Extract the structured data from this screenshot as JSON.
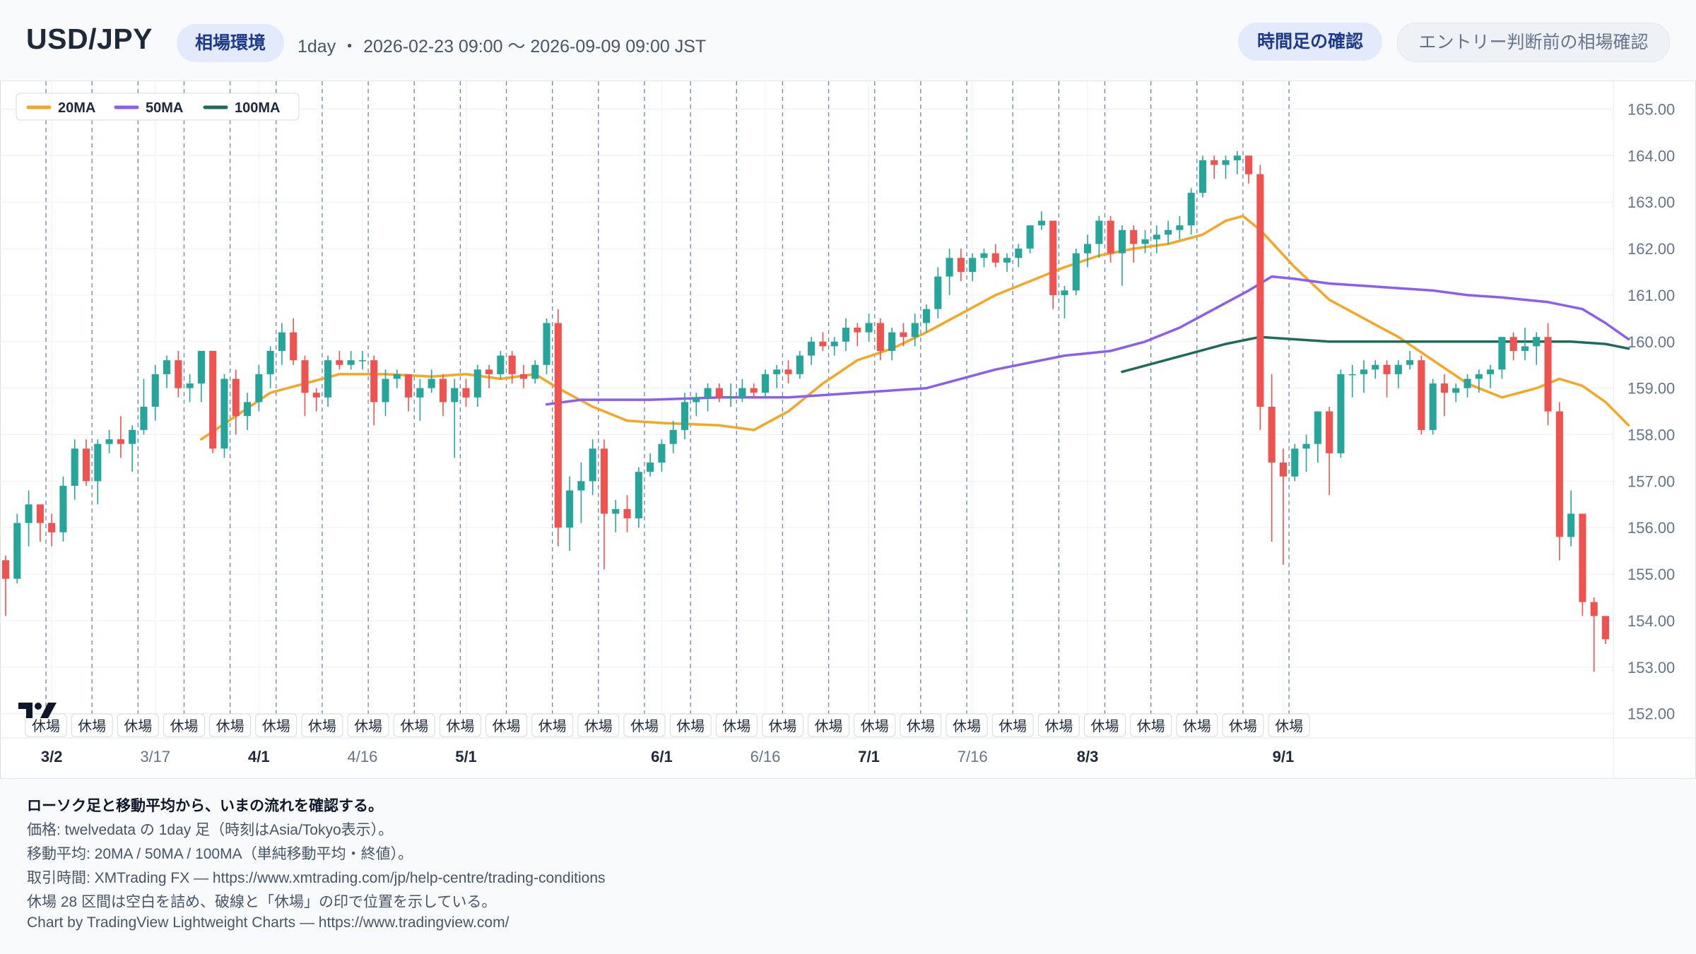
{
  "header": {
    "symbol": "USD/JPY",
    "badge": "相場環境",
    "range": "1day ・ 2026-02-23 09:00 〜 2026-09-09 09:00 JST",
    "tab_active": "時間足の確認",
    "tab_inactive": "エントリー判断前の相場確認"
  },
  "legend": [
    {
      "label": "20MA",
      "color": "#f5a623"
    },
    {
      "label": "50MA",
      "color": "#8b5cf6"
    },
    {
      "label": "100MA",
      "color": "#1e6b5c"
    }
  ],
  "closed_label": "休場",
  "footer": {
    "line1": "ローソク足と移動平均から、いまの流れを確認する。",
    "line2": "価格: twelvedata の 1day 足（時刻はAsia/Tokyo表示）。",
    "line3": "移動平均: 20MA / 50MA / 100MA（単純移動平均・終値）。",
    "line4": "取引時間: XMTrading FX — https://www.xmtrading.com/jp/help-centre/trading-conditions",
    "line5": "休場 28 区間は空白を詰め、破線と「休場」の印で位置を示している。",
    "line6": "Chart by TradingView Lightweight Charts — https://www.tradingview.com/"
  },
  "colors": {
    "up": "#26a69a",
    "down": "#ef5350",
    "grid": "#eef1f4",
    "closed_line": "#6b82b5"
  },
  "chart_data": {
    "type": "candlestick",
    "ylim": [
      151.6,
      165.6
    ],
    "y_ticks": [
      152,
      153,
      154,
      155,
      156,
      157,
      158,
      159,
      160,
      161,
      162,
      163,
      164,
      165
    ],
    "y_tick_labels": [
      "152.00",
      "153.00",
      "154.00",
      "155.00",
      "156.00",
      "157.00",
      "158.00",
      "159.00",
      "160.00",
      "161.00",
      "162.00",
      "163.00",
      "164.00",
      "165.00"
    ],
    "x_labels": [
      {
        "index": 4,
        "label": "3/2",
        "bold": true
      },
      {
        "index": 13,
        "label": "3/17",
        "bold": false
      },
      {
        "index": 22,
        "label": "4/1",
        "bold": true
      },
      {
        "index": 31,
        "label": "4/16",
        "bold": false
      },
      {
        "index": 40,
        "label": "5/1",
        "bold": true
      },
      {
        "index": 57,
        "label": "6/1",
        "bold": true
      },
      {
        "index": 66,
        "label": "6/16",
        "bold": false
      },
      {
        "index": 75,
        "label": "7/1",
        "bold": true
      },
      {
        "index": 84,
        "label": "7/16",
        "bold": false
      },
      {
        "index": 94,
        "label": "8/3",
        "bold": true
      },
      {
        "index": 111,
        "label": "9/1",
        "bold": true
      }
    ],
    "closed_gaps_after": [
      3,
      7,
      11,
      15,
      19,
      23,
      27,
      31,
      35,
      39,
      43,
      47,
      51,
      55,
      59,
      63,
      67,
      71,
      75,
      79,
      83,
      87,
      91,
      95,
      99,
      103,
      107,
      111
    ],
    "ohlc": [
      [
        155.3,
        155.4,
        154.1,
        154.9
      ],
      [
        154.9,
        156.3,
        154.8,
        156.1
      ],
      [
        156.1,
        156.8,
        155.6,
        156.5
      ],
      [
        156.5,
        156.5,
        155.7,
        156.1
      ],
      [
        156.1,
        156.3,
        155.6,
        155.9
      ],
      [
        155.9,
        157.1,
        155.7,
        156.9
      ],
      [
        156.9,
        157.9,
        156.6,
        157.7
      ],
      [
        157.7,
        157.9,
        156.9,
        157.0
      ],
      [
        157.0,
        157.9,
        156.5,
        157.8
      ],
      [
        157.8,
        158.1,
        157.6,
        157.9
      ],
      [
        157.9,
        158.4,
        157.5,
        157.8
      ],
      [
        157.8,
        158.2,
        157.2,
        158.1
      ],
      [
        158.1,
        159.2,
        158.0,
        158.6
      ],
      [
        158.6,
        159.5,
        158.3,
        159.3
      ],
      [
        159.3,
        159.7,
        159.0,
        159.6
      ],
      [
        159.6,
        159.8,
        158.8,
        159.0
      ],
      [
        159.0,
        159.3,
        158.7,
        159.1
      ],
      [
        159.1,
        159.8,
        158.7,
        159.8
      ],
      [
        159.8,
        159.8,
        157.6,
        157.7
      ],
      [
        157.7,
        159.3,
        157.5,
        159.2
      ],
      [
        159.2,
        159.4,
        158.0,
        158.4
      ],
      [
        158.4,
        158.9,
        158.1,
        158.7
      ],
      [
        158.7,
        159.5,
        158.5,
        159.3
      ],
      [
        159.3,
        159.9,
        159.0,
        159.8
      ],
      [
        159.8,
        160.4,
        159.5,
        160.2
      ],
      [
        160.2,
        160.5,
        159.5,
        159.6
      ],
      [
        159.6,
        159.7,
        158.4,
        158.9
      ],
      [
        158.9,
        159.0,
        158.5,
        158.8
      ],
      [
        158.8,
        159.7,
        158.6,
        159.6
      ],
      [
        159.6,
        159.8,
        159.4,
        159.5
      ],
      [
        159.5,
        159.8,
        159.4,
        159.6
      ],
      [
        159.6,
        159.8,
        159.4,
        159.6
      ],
      [
        159.6,
        159.7,
        158.2,
        158.7
      ],
      [
        158.7,
        159.4,
        158.4,
        159.2
      ],
      [
        159.2,
        159.4,
        159.0,
        159.3
      ],
      [
        159.3,
        159.3,
        158.5,
        158.8
      ],
      [
        158.8,
        159.2,
        158.3,
        159.0
      ],
      [
        159.0,
        159.4,
        158.9,
        159.2
      ],
      [
        159.2,
        159.3,
        158.4,
        158.7
      ],
      [
        158.7,
        159.2,
        157.5,
        159.0
      ],
      [
        159.0,
        159.2,
        158.6,
        158.8
      ],
      [
        158.8,
        159.5,
        158.6,
        159.4
      ],
      [
        159.4,
        159.5,
        159.0,
        159.3
      ],
      [
        159.3,
        159.8,
        159.2,
        159.7
      ],
      [
        159.7,
        159.8,
        159.1,
        159.3
      ],
      [
        159.3,
        159.5,
        159.0,
        159.2
      ],
      [
        159.2,
        159.6,
        159.1,
        159.5
      ],
      [
        159.5,
        160.5,
        159.3,
        160.4
      ],
      [
        160.4,
        160.7,
        155.6,
        156.0
      ],
      [
        156.0,
        157.1,
        155.5,
        156.8
      ],
      [
        156.8,
        157.4,
        156.1,
        157.0
      ],
      [
        157.0,
        157.9,
        156.7,
        157.7
      ],
      [
        157.7,
        157.9,
        155.1,
        156.3
      ],
      [
        156.3,
        156.6,
        155.9,
        156.4
      ],
      [
        156.4,
        156.7,
        155.9,
        156.2
      ],
      [
        156.2,
        157.3,
        156.0,
        157.2
      ],
      [
        157.2,
        157.6,
        157.1,
        157.4
      ],
      [
        157.4,
        157.9,
        157.2,
        157.8
      ],
      [
        157.8,
        158.3,
        157.6,
        158.1
      ],
      [
        158.1,
        158.9,
        157.9,
        158.7
      ],
      [
        158.7,
        158.9,
        158.4,
        158.8
      ],
      [
        158.8,
        159.1,
        158.5,
        159.0
      ],
      [
        159.0,
        159.1,
        158.7,
        158.8
      ],
      [
        158.8,
        159.1,
        158.6,
        158.8
      ],
      [
        158.8,
        159.2,
        158.7,
        159.0
      ],
      [
        159.0,
        159.1,
        158.8,
        158.9
      ],
      [
        158.9,
        159.4,
        158.8,
        159.3
      ],
      [
        159.3,
        159.5,
        159.0,
        159.4
      ],
      [
        159.4,
        159.6,
        159.1,
        159.3
      ],
      [
        159.3,
        159.8,
        159.2,
        159.7
      ],
      [
        159.7,
        160.1,
        159.5,
        160.0
      ],
      [
        160.0,
        160.2,
        159.8,
        159.9
      ],
      [
        159.9,
        160.1,
        159.7,
        160.0
      ],
      [
        160.0,
        160.5,
        159.8,
        160.3
      ],
      [
        160.3,
        160.4,
        159.9,
        160.2
      ],
      [
        160.2,
        160.6,
        160.0,
        160.4
      ],
      [
        160.4,
        160.5,
        159.6,
        159.8
      ],
      [
        159.8,
        160.3,
        159.6,
        160.2
      ],
      [
        160.2,
        160.4,
        159.9,
        160.1
      ],
      [
        160.1,
        160.6,
        159.9,
        160.4
      ],
      [
        160.4,
        160.8,
        160.2,
        160.7
      ],
      [
        160.7,
        161.6,
        160.5,
        161.4
      ],
      [
        161.4,
        162.0,
        161.0,
        161.8
      ],
      [
        161.8,
        162.0,
        161.3,
        161.5
      ],
      [
        161.5,
        161.9,
        161.3,
        161.8
      ],
      [
        161.8,
        162.0,
        161.6,
        161.9
      ],
      [
        161.9,
        162.1,
        161.6,
        161.7
      ],
      [
        161.7,
        161.9,
        161.5,
        161.8
      ],
      [
        161.8,
        162.1,
        161.6,
        162.0
      ],
      [
        162.0,
        162.5,
        161.9,
        162.5
      ],
      [
        162.5,
        162.8,
        162.4,
        162.6
      ],
      [
        162.6,
        162.6,
        160.7,
        161.0
      ],
      [
        161.0,
        161.2,
        160.5,
        161.1
      ],
      [
        161.1,
        162.0,
        161.0,
        161.9
      ],
      [
        161.9,
        162.3,
        161.6,
        162.1
      ],
      [
        162.1,
        162.7,
        161.8,
        162.6
      ],
      [
        162.6,
        162.7,
        161.7,
        161.9
      ],
      [
        161.9,
        162.5,
        161.2,
        162.4
      ],
      [
        162.4,
        162.5,
        161.7,
        162.1
      ],
      [
        162.1,
        162.4,
        161.9,
        162.2
      ],
      [
        162.2,
        162.5,
        161.9,
        162.3
      ],
      [
        162.3,
        162.6,
        162.1,
        162.4
      ],
      [
        162.4,
        162.7,
        162.2,
        162.5
      ],
      [
        162.5,
        163.3,
        162.3,
        163.2
      ],
      [
        163.2,
        164.0,
        163.1,
        163.9
      ],
      [
        163.9,
        164.0,
        163.5,
        163.8
      ],
      [
        163.8,
        164.0,
        163.5,
        163.9
      ],
      [
        163.9,
        164.1,
        163.6,
        164.0
      ],
      [
        164.0,
        164.0,
        163.4,
        163.6
      ],
      [
        163.6,
        163.8,
        158.1,
        158.6
      ],
      [
        158.6,
        159.3,
        155.7,
        157.4
      ],
      [
        157.4,
        157.7,
        155.2,
        157.1
      ],
      [
        157.1,
        157.8,
        157.0,
        157.7
      ],
      [
        157.7,
        158.0,
        157.2,
        157.8
      ],
      [
        157.8,
        158.5,
        157.4,
        158.5
      ],
      [
        158.5,
        158.6,
        156.7,
        157.6
      ],
      [
        157.6,
        159.4,
        157.5,
        159.3
      ],
      [
        159.3,
        159.5,
        158.8,
        159.3
      ],
      [
        159.3,
        159.6,
        158.9,
        159.4
      ],
      [
        159.4,
        159.6,
        159.2,
        159.5
      ],
      [
        159.5,
        159.6,
        158.8,
        159.3
      ],
      [
        159.3,
        159.6,
        159.0,
        159.5
      ],
      [
        159.5,
        159.8,
        159.4,
        159.6
      ],
      [
        159.6,
        159.7,
        158.0,
        158.1
      ],
      [
        158.1,
        159.2,
        158.0,
        159.1
      ],
      [
        159.1,
        159.3,
        158.4,
        158.9
      ],
      [
        158.9,
        159.1,
        158.7,
        159.0
      ],
      [
        159.0,
        159.3,
        158.8,
        159.2
      ],
      [
        159.2,
        159.4,
        158.9,
        159.3
      ],
      [
        159.3,
        159.5,
        159.0,
        159.4
      ],
      [
        159.4,
        160.1,
        159.2,
        160.1
      ],
      [
        160.1,
        160.2,
        159.6,
        159.8
      ],
      [
        159.8,
        160.3,
        159.6,
        159.9
      ],
      [
        159.9,
        160.2,
        159.5,
        160.1
      ],
      [
        160.1,
        160.4,
        158.2,
        158.5
      ],
      [
        158.5,
        158.7,
        155.3,
        155.8
      ],
      [
        155.8,
        156.8,
        155.6,
        156.3
      ],
      [
        156.3,
        156.3,
        154.1,
        154.4
      ],
      [
        154.4,
        154.5,
        152.9,
        154.1
      ],
      [
        154.1,
        154.1,
        153.5,
        153.6
      ]
    ],
    "series": [
      {
        "name": "20MA",
        "values": [
          [
            17,
            157.9
          ],
          [
            20,
            158.4
          ],
          [
            23,
            158.9
          ],
          [
            26,
            159.1
          ],
          [
            29,
            159.3
          ],
          [
            33,
            159.3
          ],
          [
            37,
            159.25
          ],
          [
            40,
            159.3
          ],
          [
            43,
            159.2
          ],
          [
            46,
            159.3
          ],
          [
            48,
            159.0
          ],
          [
            51,
            158.6
          ],
          [
            54,
            158.3
          ],
          [
            57,
            158.25
          ],
          [
            62,
            158.2
          ],
          [
            65,
            158.1
          ],
          [
            68,
            158.5
          ],
          [
            71,
            159.1
          ],
          [
            74,
            159.6
          ],
          [
            77,
            159.85
          ],
          [
            80,
            160.2
          ],
          [
            83,
            160.6
          ],
          [
            86,
            161.0
          ],
          [
            89,
            161.3
          ],
          [
            92,
            161.6
          ],
          [
            95,
            161.85
          ],
          [
            98,
            162.0
          ],
          [
            101,
            162.1
          ],
          [
            104,
            162.3
          ],
          [
            106,
            162.6
          ],
          [
            107.5,
            162.7
          ],
          [
            109,
            162.4
          ],
          [
            112,
            161.6
          ],
          [
            115,
            160.9
          ],
          [
            118,
            160.5
          ],
          [
            121,
            160.1
          ],
          [
            124,
            159.6
          ],
          [
            127,
            159.1
          ],
          [
            130,
            158.8
          ],
          [
            133,
            159.0
          ],
          [
            135,
            159.2
          ],
          [
            137,
            159.05
          ],
          [
            139,
            158.7
          ],
          [
            141,
            158.2
          ]
        ]
      },
      {
        "name": "50MA",
        "values": [
          [
            47,
            158.65
          ],
          [
            50,
            158.75
          ],
          [
            56,
            158.75
          ],
          [
            62,
            158.8
          ],
          [
            68,
            158.8
          ],
          [
            74,
            158.9
          ],
          [
            80,
            159.0
          ],
          [
            86,
            159.4
          ],
          [
            92,
            159.7
          ],
          [
            96,
            159.8
          ],
          [
            99,
            160.0
          ],
          [
            102,
            160.3
          ],
          [
            105,
            160.7
          ],
          [
            108,
            161.1
          ],
          [
            110,
            161.4
          ],
          [
            112,
            161.35
          ],
          [
            115,
            161.25
          ],
          [
            118,
            161.2
          ],
          [
            121,
            161.15
          ],
          [
            124,
            161.1
          ],
          [
            127,
            161.0
          ],
          [
            130,
            160.95
          ],
          [
            134,
            160.85
          ],
          [
            137,
            160.7
          ],
          [
            139,
            160.4
          ],
          [
            141,
            160.05
          ]
        ]
      },
      {
        "name": "100MA",
        "values": [
          [
            97,
            159.35
          ],
          [
            100,
            159.55
          ],
          [
            103,
            159.75
          ],
          [
            106,
            159.95
          ],
          [
            109,
            160.1
          ],
          [
            112,
            160.05
          ],
          [
            115,
            160.0
          ],
          [
            118,
            160.0
          ],
          [
            121,
            160.0
          ],
          [
            124,
            160.0
          ],
          [
            127,
            160.0
          ],
          [
            130,
            160.0
          ],
          [
            133,
            160.0
          ],
          [
            136,
            160.0
          ],
          [
            139,
            159.95
          ],
          [
            141,
            159.85
          ]
        ]
      }
    ]
  }
}
